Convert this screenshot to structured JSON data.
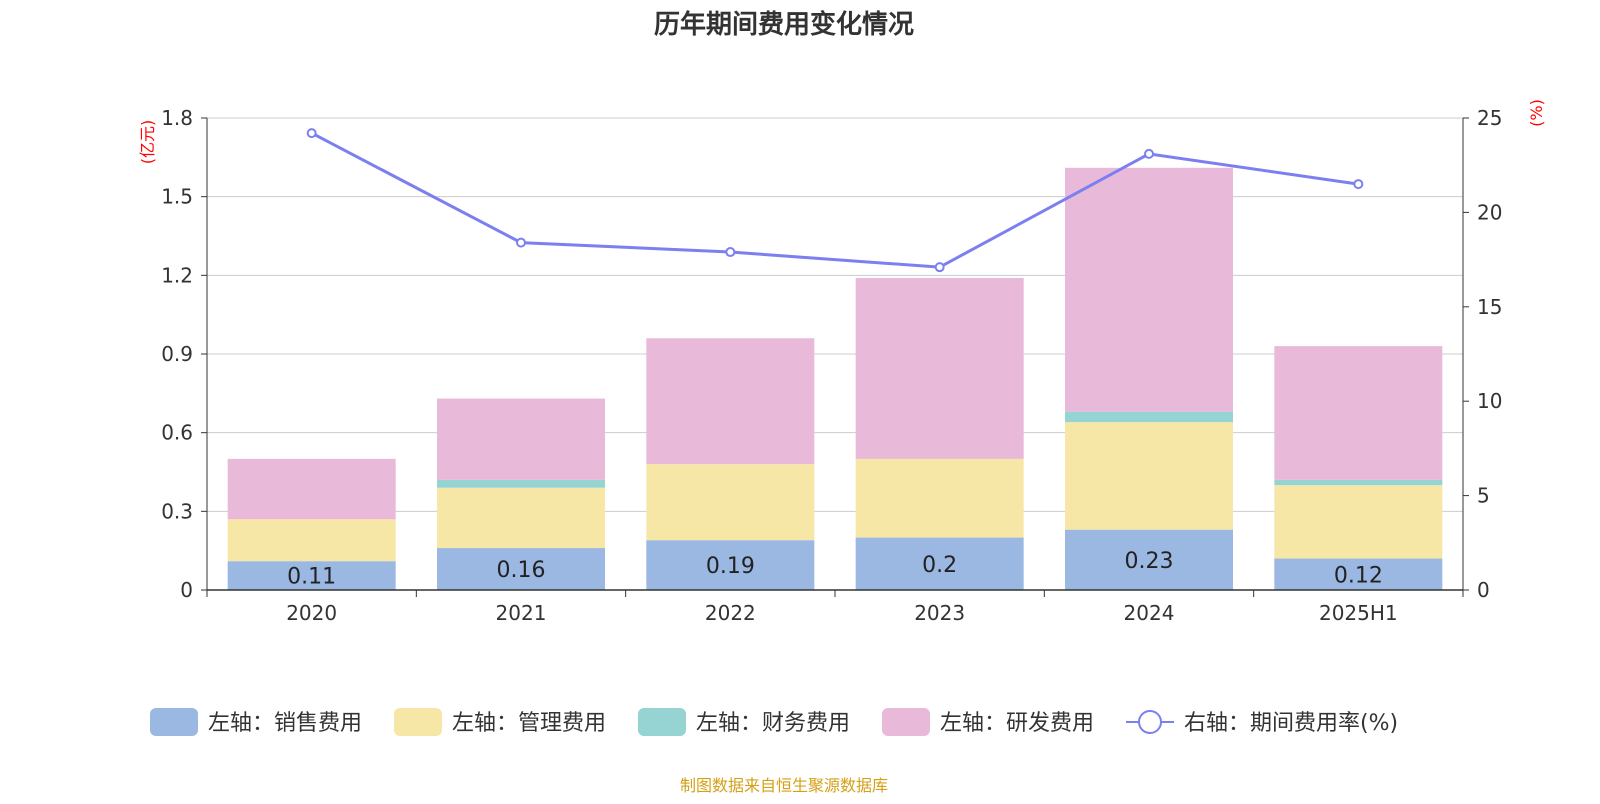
{
  "chart_data": {
    "type": "bar",
    "stacked": true,
    "title": "历年期间费用变化情况",
    "left_axis_unit": "(亿元)",
    "right_axis_unit": "(%)",
    "categories": [
      "2020",
      "2021",
      "2022",
      "2023",
      "2024",
      "2025H1"
    ],
    "ylim": [
      0,
      1.8
    ],
    "y_ticks": [
      "0",
      "0.3",
      "0.6",
      "0.9",
      "1.2",
      "1.5",
      "1.8"
    ],
    "y2lim": [
      0,
      25
    ],
    "y2_ticks": [
      "0",
      "5",
      "10",
      "15",
      "20",
      "25"
    ],
    "grid": true,
    "legend_position": "bottom",
    "series": [
      {
        "name": "左轴：销售费用",
        "axis": "left",
        "type": "bar",
        "color": "#9bb8e3",
        "values": [
          0.11,
          0.16,
          0.19,
          0.2,
          0.23,
          0.12
        ],
        "labels": [
          "0.11",
          "0.16",
          "0.19",
          "0.2",
          "0.23",
          "0.12"
        ]
      },
      {
        "name": "左轴：管理费用",
        "axis": "left",
        "type": "bar",
        "color": "#f7e7a6",
        "values": [
          0.16,
          0.23,
          0.29,
          0.3,
          0.41,
          0.28
        ]
      },
      {
        "name": "左轴：财务费用",
        "axis": "left",
        "type": "bar",
        "color": "#96d4d4",
        "values": [
          0.0,
          0.03,
          0.0,
          0.0,
          0.04,
          0.02
        ]
      },
      {
        "name": "左轴：研发费用",
        "axis": "left",
        "type": "bar",
        "color": "#e8b9d9",
        "values": [
          0.23,
          0.31,
          0.48,
          0.69,
          0.93,
          0.51
        ]
      },
      {
        "name": "右轴：期间费用率(%)",
        "axis": "right",
        "type": "line",
        "color": "#7b7ff0",
        "values": [
          24.2,
          18.4,
          17.9,
          17.1,
          23.1,
          21.5
        ]
      }
    ],
    "source": "制图数据来自恒生聚源数据库"
  },
  "colors": {
    "axis_unit": "#ff0000",
    "source_text": "#d4a017",
    "grid": "#cccccc",
    "axis_line": "#333333",
    "tick_text": "#333333"
  }
}
